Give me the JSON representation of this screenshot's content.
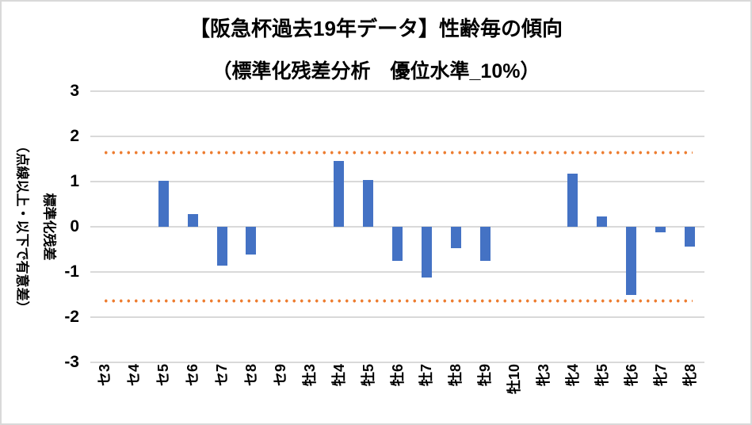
{
  "title": {
    "line1": "【阪急杯過去19年データ】性齢毎の傾向",
    "line2": "（標準化残差分析　優位水準_10%）"
  },
  "y_axis": {
    "title_main": "標準化残差",
    "title_sub": "（点線以上・以下で有意差）",
    "tick_labels": [
      "3",
      "2",
      "1",
      "0",
      "-1",
      "-2",
      "-3"
    ],
    "tick_values": [
      3,
      2,
      1,
      0,
      -1,
      -2,
      -3
    ],
    "min": -3,
    "max": 3
  },
  "chart_data": {
    "type": "bar",
    "title": "【阪急杯過去19年データ】性齢毎の傾向（標準化残差分析 優位水準_10%）",
    "ylabel": "標準化残差（点線以上・以下で有意差）",
    "categories": [
      "セ3",
      "セ4",
      "セ5",
      "セ6",
      "セ7",
      "セ8",
      "セ9",
      "牡3",
      "牡4",
      "牡5",
      "牡6",
      "牡7",
      "牡8",
      "牡9",
      "牡10",
      "牝3",
      "牝4",
      "牝5",
      "牝6",
      "牝7",
      "牝8"
    ],
    "values": [
      0,
      0,
      1.02,
      0.28,
      -0.86,
      -0.62,
      0,
      0,
      1.45,
      1.03,
      -0.75,
      -1.13,
      -0.47,
      -0.75,
      0,
      0,
      1.17,
      0.22,
      -1.5,
      -0.12,
      -0.44
    ],
    "ylim": [
      -3,
      3
    ],
    "threshold_upper": 1.645,
    "threshold_lower": -1.645,
    "grid": true,
    "legend": "none",
    "colors": {
      "bar": "#4472C4",
      "threshold": "#ED7D31",
      "gridline": "#D9D9D9",
      "text": "#000000",
      "border": "#D9D9D9"
    }
  }
}
